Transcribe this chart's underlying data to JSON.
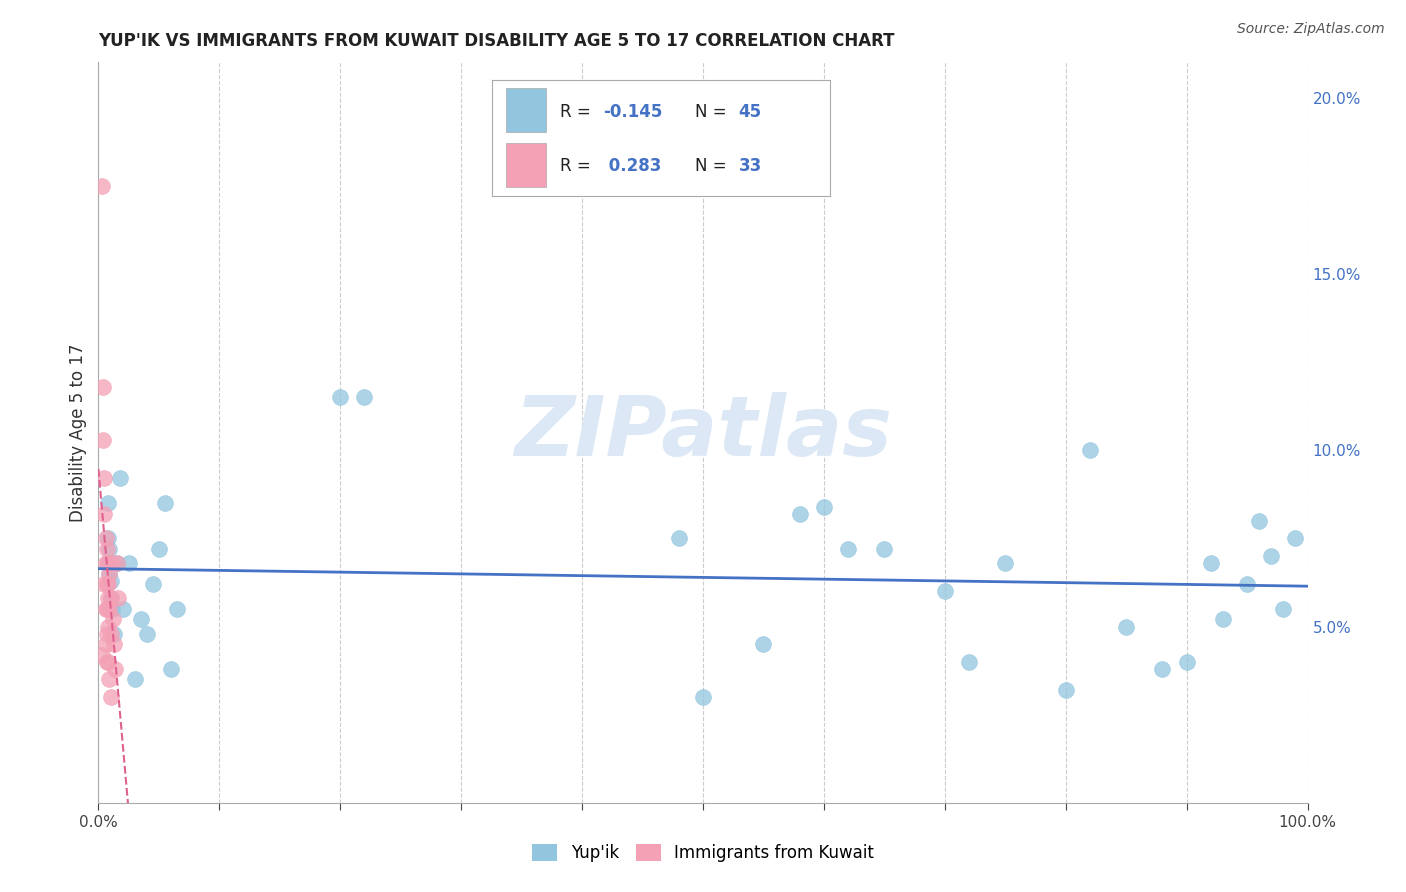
{
  "title": "YUP'IK VS IMMIGRANTS FROM KUWAIT DISABILITY AGE 5 TO 17 CORRELATION CHART",
  "source": "Source: ZipAtlas.com",
  "ylabel": "Disability Age 5 to 17",
  "xlim": [
    0.0,
    1.0
  ],
  "ylim": [
    0.0,
    0.21
  ],
  "xtick_positions": [
    0.0,
    0.1,
    0.2,
    0.3,
    0.4,
    0.5,
    0.6,
    0.7,
    0.8,
    0.9,
    1.0
  ],
  "xticklabels_sparse": {
    "0": "0.0%",
    "10": "100.0%"
  },
  "ytick_right_positions": [
    0.05,
    0.1,
    0.15,
    0.2
  ],
  "ytick_right_labels": [
    "5.0%",
    "10.0%",
    "15.0%",
    "20.0%"
  ],
  "color_blue": "#92c5de",
  "color_pink": "#f4a0b5",
  "color_blue_line": "#4472c4",
  "color_pink_line": "#e06090",
  "color_grid": "#cccccc",
  "watermark_text": "ZIPatlas",
  "watermark_color": "#dce8f5",
  "legend_box_color": "#f0f0f0",
  "legend_text_color": "#4472c4",
  "yup_x": [
    0.008,
    0.008,
    0.008,
    0.009,
    0.009,
    0.01,
    0.01,
    0.011,
    0.013,
    0.015,
    0.018,
    0.02,
    0.025,
    0.03,
    0.035,
    0.04,
    0.045,
    0.05,
    0.055,
    0.06,
    0.065,
    0.2,
    0.22,
    0.48,
    0.5,
    0.55,
    0.58,
    0.6,
    0.62,
    0.65,
    0.7,
    0.72,
    0.75,
    0.8,
    0.82,
    0.85,
    0.88,
    0.9,
    0.92,
    0.93,
    0.95,
    0.96,
    0.97,
    0.98,
    0.99
  ],
  "yup_y": [
    0.085,
    0.075,
    0.068,
    0.072,
    0.065,
    0.063,
    0.058,
    0.055,
    0.048,
    0.068,
    0.092,
    0.055,
    0.068,
    0.035,
    0.052,
    0.048,
    0.062,
    0.072,
    0.085,
    0.038,
    0.055,
    0.115,
    0.115,
    0.075,
    0.03,
    0.045,
    0.082,
    0.084,
    0.072,
    0.072,
    0.06,
    0.04,
    0.068,
    0.032,
    0.1,
    0.05,
    0.038,
    0.04,
    0.068,
    0.052,
    0.062,
    0.08,
    0.07,
    0.055,
    0.075
  ],
  "kuwait_x": [
    0.003,
    0.003,
    0.004,
    0.004,
    0.005,
    0.005,
    0.005,
    0.006,
    0.006,
    0.006,
    0.006,
    0.007,
    0.007,
    0.007,
    0.007,
    0.007,
    0.008,
    0.008,
    0.008,
    0.008,
    0.008,
    0.009,
    0.009,
    0.009,
    0.01,
    0.01,
    0.01,
    0.011,
    0.012,
    0.013,
    0.014,
    0.015,
    0.016
  ],
  "kuwait_y": [
    0.175,
    0.042,
    0.118,
    0.103,
    0.092,
    0.082,
    0.062,
    0.075,
    0.068,
    0.055,
    0.045,
    0.072,
    0.062,
    0.055,
    0.048,
    0.04,
    0.068,
    0.062,
    0.058,
    0.05,
    0.04,
    0.065,
    0.055,
    0.035,
    0.058,
    0.048,
    0.03,
    0.068,
    0.052,
    0.045,
    0.038,
    0.068,
    0.058
  ]
}
